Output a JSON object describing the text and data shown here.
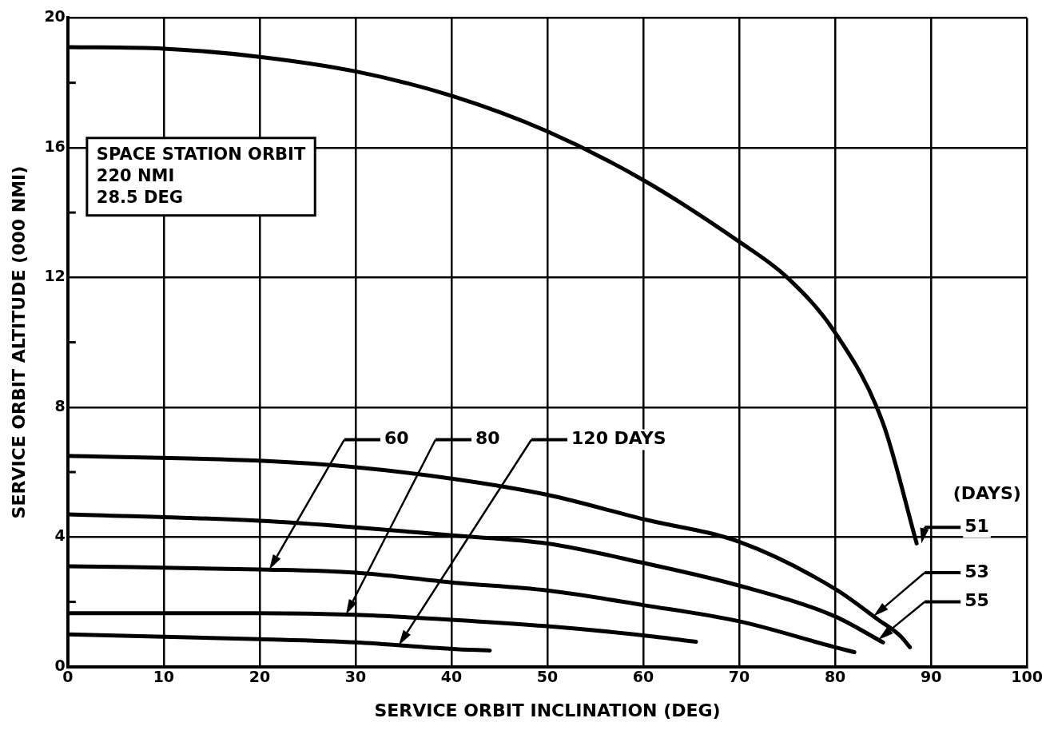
{
  "chart_data": {
    "type": "line",
    "xlabel": "SERVICE ORBIT INCLINATION (DEG)",
    "ylabel": "SERVICE ORBIT ALTITUDE (000 NMI)",
    "legend_title": "(DAYS)",
    "annotations": [
      "SPACE STATION ORBIT\n220 NMI\n28.5 DEG"
    ],
    "xlim": [
      0,
      100
    ],
    "xticks": [
      0,
      10,
      20,
      30,
      40,
      50,
      60,
      70,
      80,
      90,
      100
    ],
    "ylim": [
      0,
      20
    ],
    "yticks": [
      0,
      {
        "value": 2,
        "label": null
      },
      4,
      {
        "value": 6,
        "label": null
      },
      8,
      {
        "value": 10,
        "label": null
      },
      12,
      {
        "value": 14,
        "label": null
      },
      16,
      {
        "value": 18,
        "label": null
      },
      20
    ],
    "grid": true,
    "legend": "right",
    "marker": "none",
    "line_style": "solid",
    "series": [
      {
        "name": "51",
        "color": "#000000",
        "x": [
          0,
          10,
          20,
          30,
          40,
          50,
          60,
          70,
          75,
          80,
          85,
          88.5
        ],
        "values": [
          19.1,
          19.05,
          18.8,
          18.35,
          17.6,
          16.5,
          15.0,
          13.1,
          12.0,
          10.3,
          7.5,
          3.8
        ]
      },
      {
        "name": "53",
        "color": "#000000",
        "x": [
          0,
          20,
          30,
          40,
          50,
          60,
          70,
          80,
          84.5,
          86.8,
          87.8
        ],
        "values": [
          6.5,
          6.35,
          6.15,
          5.8,
          5.3,
          4.55,
          3.85,
          2.4,
          1.45,
          0.95,
          0.6
        ]
      },
      {
        "name": "55",
        "color": "#000000",
        "x": [
          0,
          20,
          30,
          40,
          50,
          60,
          70,
          80,
          85
        ],
        "values": [
          4.7,
          4.5,
          4.3,
          4.05,
          3.8,
          3.2,
          2.5,
          1.55,
          0.75
        ]
      },
      {
        "name": "60",
        "color": "#000000",
        "x": [
          0,
          20,
          30,
          40,
          50,
          60,
          70,
          80,
          82
        ],
        "values": [
          3.1,
          3.0,
          2.9,
          2.6,
          2.35,
          1.9,
          1.4,
          0.6,
          0.45
        ]
      },
      {
        "name": "80",
        "color": "#000000",
        "x": [
          0,
          20,
          30,
          40,
          50,
          60,
          65.5
        ],
        "values": [
          1.65,
          1.65,
          1.6,
          1.45,
          1.25,
          0.97,
          0.77
        ]
      },
      {
        "name": "120 DAYS",
        "color": "#000000",
        "x": [
          0,
          20,
          30,
          40,
          44
        ],
        "values": [
          1.0,
          0.85,
          0.75,
          0.55,
          0.5
        ]
      }
    ]
  }
}
